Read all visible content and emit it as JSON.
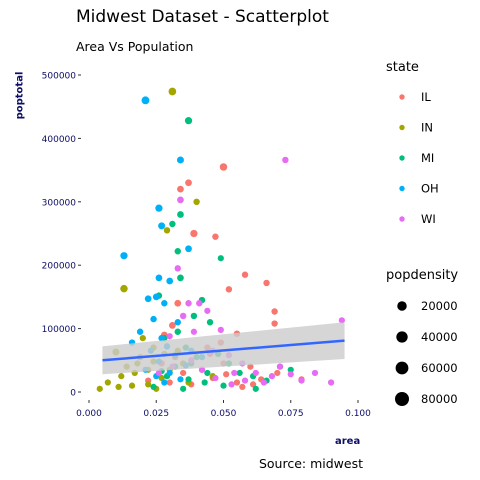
{
  "chart_data": {
    "type": "scatter",
    "title": "Midwest Dataset - Scatterplot",
    "subtitle": "Area Vs Population",
    "caption": "Source: midwest",
    "xlabel": "area",
    "ylabel": "poptotal",
    "xlim": [
      0,
      0.1
    ],
    "ylim": [
      0,
      500000
    ],
    "xticks": [
      "0.000",
      "0.025",
      "0.050",
      "0.075",
      "0.100"
    ],
    "yticks": [
      "0",
      "100000",
      "200000",
      "300000",
      "400000",
      "500000"
    ],
    "grid": false,
    "legend_placement": "right",
    "color_legend": {
      "title": "state",
      "entries": [
        {
          "label": "IL",
          "color": "#F8766D"
        },
        {
          "label": "IN",
          "color": "#A3A500"
        },
        {
          "label": "MI",
          "color": "#00BF7D"
        },
        {
          "label": "OH",
          "color": "#00B0F6"
        },
        {
          "label": "WI",
          "color": "#E76BF3"
        }
      ]
    },
    "size_legend": {
      "title": "popdensity",
      "entries": [
        {
          "label": "20000",
          "value": 20000
        },
        {
          "label": "40000",
          "value": 40000
        },
        {
          "label": "60000",
          "value": 60000
        },
        {
          "label": "80000",
          "value": 80000
        }
      ]
    },
    "smooth": {
      "color": "#3366FF",
      "band_color": "#CCCCCC",
      "x": [
        0.005,
        0.095
      ],
      "y": [
        50000,
        81000
      ],
      "ci_low": [
        28000,
        52000
      ],
      "ci_high": [
        72000,
        110000
      ]
    },
    "series": [
      {
        "name": "IL",
        "color": "#F8766D",
        "points": [
          [
            0.037,
            330000,
            3000
          ],
          [
            0.05,
            355000,
            6000
          ],
          [
            0.034,
            320000,
            3000
          ],
          [
            0.039,
            250000,
            5000
          ],
          [
            0.047,
            245000,
            2000
          ],
          [
            0.058,
            185000,
            2000
          ],
          [
            0.066,
            172000,
            2000
          ],
          [
            0.052,
            162000,
            2000
          ],
          [
            0.033,
            140000,
            3000
          ],
          [
            0.069,
            127000,
            2000
          ],
          [
            0.069,
            108000,
            2000
          ],
          [
            0.055,
            92000,
            2000
          ],
          [
            0.049,
            78000,
            2000
          ],
          [
            0.031,
            105000,
            3000
          ],
          [
            0.028,
            90000,
            3000
          ],
          [
            0.044,
            70000,
            2000
          ],
          [
            0.05,
            45000,
            1500
          ],
          [
            0.06,
            40000,
            1500
          ],
          [
            0.042,
            35000,
            1500
          ],
          [
            0.035,
            30000,
            1500
          ],
          [
            0.051,
            28000,
            1500
          ],
          [
            0.046,
            22000,
            1500
          ],
          [
            0.03,
            15000,
            1500
          ],
          [
            0.055,
            15000,
            1500
          ],
          [
            0.064,
            20000,
            1500
          ],
          [
            0.07,
            30000,
            1500
          ],
          [
            0.079,
            20000,
            1500
          ],
          [
            0.057,
            8000,
            1500
          ],
          [
            0.061,
            12000,
            1500
          ],
          [
            0.027,
            45000,
            1500
          ],
          [
            0.022,
            18000,
            1500
          ],
          [
            0.038,
            12000,
            1500
          ],
          [
            0.045,
            60000,
            1500
          ],
          [
            0.032,
            55000,
            1500
          ]
        ]
      },
      {
        "name": "IN",
        "color": "#A3A500",
        "points": [
          [
            0.031,
            474000,
            7000
          ],
          [
            0.04,
            300000,
            2000
          ],
          [
            0.029,
            255000,
            2000
          ],
          [
            0.013,
            163000,
            6000
          ],
          [
            0.01,
            63000,
            4000
          ],
          [
            0.007,
            15000,
            1500
          ],
          [
            0.004,
            5000,
            1500
          ],
          [
            0.012,
            25000,
            1500
          ],
          [
            0.014,
            40000,
            1500
          ],
          [
            0.017,
            30000,
            1500
          ],
          [
            0.022,
            35000,
            1500
          ],
          [
            0.019,
            55000,
            1500
          ],
          [
            0.024,
            70000,
            1500
          ],
          [
            0.027,
            22000,
            1500
          ],
          [
            0.033,
            65000,
            1500
          ],
          [
            0.016,
            10000,
            1500
          ],
          [
            0.022,
            12000,
            1500
          ],
          [
            0.035,
            45000,
            1500
          ],
          [
            0.02,
            85000,
            1500
          ],
          [
            0.03,
            35000,
            1500
          ],
          [
            0.025,
            5000,
            1500
          ],
          [
            0.037,
            15000,
            1500
          ],
          [
            0.011,
            8000,
            1500
          ],
          [
            0.028,
            60000,
            1500
          ],
          [
            0.046,
            25000,
            1500
          ],
          [
            0.018,
            45000,
            1500
          ],
          [
            0.024,
            48000,
            1500
          ]
        ]
      },
      {
        "name": "MI",
        "color": "#00BF7D",
        "points": [
          [
            0.037,
            428000,
            5000
          ],
          [
            0.034,
            280000,
            3000
          ],
          [
            0.031,
            265000,
            2000
          ],
          [
            0.033,
            222000,
            2000
          ],
          [
            0.049,
            211000,
            1500
          ],
          [
            0.034,
            180000,
            3000
          ],
          [
            0.026,
            152000,
            2000
          ],
          [
            0.042,
            145000,
            2000
          ],
          [
            0.039,
            120000,
            2000
          ],
          [
            0.045,
            110000,
            2000
          ],
          [
            0.033,
            95000,
            2000
          ],
          [
            0.028,
            85000,
            2000
          ],
          [
            0.036,
            70000,
            1500
          ],
          [
            0.04,
            55000,
            1500
          ],
          [
            0.048,
            60000,
            1500
          ],
          [
            0.052,
            45000,
            1500
          ],
          [
            0.056,
            30000,
            1500
          ],
          [
            0.061,
            25000,
            1500
          ],
          [
            0.066,
            18000,
            1500
          ],
          [
            0.071,
            40000,
            1500
          ],
          [
            0.075,
            35000,
            1500
          ],
          [
            0.029,
            25000,
            1500
          ],
          [
            0.032,
            40000,
            1500
          ],
          [
            0.037,
            20000,
            1500
          ],
          [
            0.043,
            15000,
            1500
          ],
          [
            0.024,
            8000,
            1500
          ],
          [
            0.05,
            10000,
            1500
          ],
          [
            0.062,
            5000,
            1500
          ],
          [
            0.035,
            5000,
            1500
          ],
          [
            0.027,
            33000,
            1500
          ],
          [
            0.044,
            30000,
            1500
          ],
          [
            0.038,
            45000,
            1500
          ]
        ]
      },
      {
        "name": "OH",
        "color": "#00B0F6",
        "points": [
          [
            0.021,
            460000,
            8000
          ],
          [
            0.034,
            366000,
            4000
          ],
          [
            0.026,
            290000,
            5000
          ],
          [
            0.027,
            262000,
            4000
          ],
          [
            0.037,
            226000,
            3000
          ],
          [
            0.013,
            215000,
            5000
          ],
          [
            0.026,
            180000,
            3000
          ],
          [
            0.03,
            175000,
            3000
          ],
          [
            0.025,
            150000,
            3000
          ],
          [
            0.022,
            147000,
            3000
          ],
          [
            0.028,
            140000,
            2000
          ],
          [
            0.024,
            115000,
            2000
          ],
          [
            0.033,
            110000,
            2000
          ],
          [
            0.019,
            95000,
            2000
          ],
          [
            0.027,
            85000,
            2000
          ],
          [
            0.016,
            78000,
            2000
          ],
          [
            0.029,
            72000,
            2000
          ],
          [
            0.023,
            65000,
            1500
          ],
          [
            0.032,
            58000,
            1500
          ],
          [
            0.026,
            48000,
            1500
          ],
          [
            0.036,
            42000,
            1500
          ],
          [
            0.03,
            30000,
            1500
          ],
          [
            0.021,
            35000,
            1500
          ],
          [
            0.025,
            25000,
            1500
          ],
          [
            0.034,
            20000,
            1500
          ],
          [
            0.042,
            55000,
            1500
          ],
          [
            0.038,
            65000,
            1500
          ],
          [
            0.028,
            15000,
            1500
          ]
        ]
      },
      {
        "name": "WI",
        "color": "#E76BF3",
        "points": [
          [
            0.073,
            366000,
            2000
          ],
          [
            0.034,
            303000,
            3000
          ],
          [
            0.033,
            195000,
            2000
          ],
          [
            0.041,
            140000,
            2000
          ],
          [
            0.037,
            140000,
            2000
          ],
          [
            0.044,
            128000,
            1500
          ],
          [
            0.049,
            98000,
            1500
          ],
          [
            0.039,
            95000,
            1500
          ],
          [
            0.03,
            88000,
            1500
          ],
          [
            0.035,
            120000,
            2000
          ],
          [
            0.046,
            65000,
            1500
          ],
          [
            0.052,
            58000,
            1500
          ],
          [
            0.057,
            45000,
            1500
          ],
          [
            0.062,
            30000,
            1500
          ],
          [
            0.068,
            25000,
            1500
          ],
          [
            0.075,
            28000,
            1500
          ],
          [
            0.079,
            18000,
            1500
          ],
          [
            0.084,
            30000,
            1500
          ],
          [
            0.09,
            15000,
            1500
          ],
          [
            0.094,
            113000,
            1500
          ],
          [
            0.065,
            15000,
            1500
          ],
          [
            0.058,
            18000,
            1500
          ],
          [
            0.053,
            12000,
            1500
          ],
          [
            0.047,
            22000,
            1500
          ],
          [
            0.042,
            35000,
            1500
          ],
          [
            0.038,
            50000,
            1500
          ],
          [
            0.031,
            40000,
            1500
          ],
          [
            0.026,
            30000,
            1500
          ],
          [
            0.071,
            40000,
            1500
          ],
          [
            0.054,
            30000,
            1500
          ]
        ]
      }
    ]
  }
}
